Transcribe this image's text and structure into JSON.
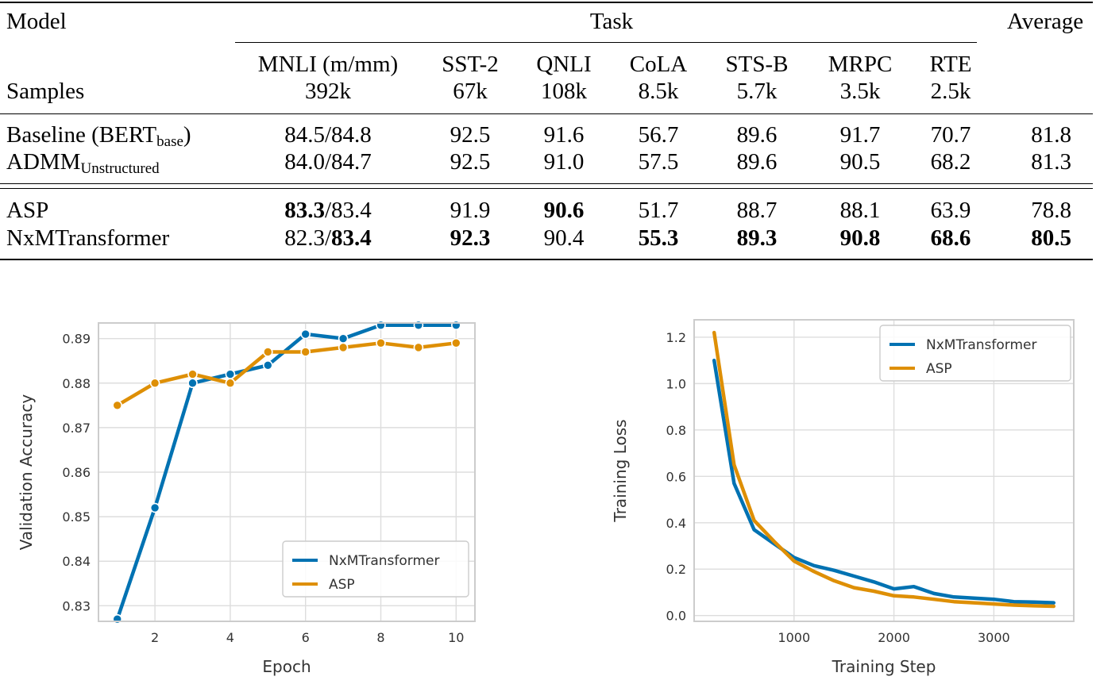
{
  "table": {
    "header": {
      "model": "Model",
      "task": "Task",
      "average": "Average",
      "samples": "Samples"
    },
    "tasks": [
      {
        "name": "MNLI (m/mm)",
        "samples": "392k"
      },
      {
        "name": "SST-2",
        "samples": "67k"
      },
      {
        "name": "QNLI",
        "samples": "108k"
      },
      {
        "name": "CoLA",
        "samples": "8.5k"
      },
      {
        "name": "STS-B",
        "samples": "5.7k"
      },
      {
        "name": "MRPC",
        "samples": "3.5k"
      },
      {
        "name": "RTE",
        "samples": "2.5k"
      }
    ],
    "rows": [
      {
        "model": "Baseline (BERT",
        "sub": "base",
        "suffix": ")",
        "mnli_a": "84.5",
        "mnli_b": "84.8",
        "values": [
          "92.5",
          "91.6",
          "56.7",
          "89.6",
          "91.7",
          "70.7"
        ],
        "average": "81.8"
      },
      {
        "model": "ADMM",
        "sub": "Unstructured",
        "suffix": "",
        "mnli_a": "84.0",
        "mnli_b": "84.7",
        "values": [
          "92.5",
          "91.0",
          "57.5",
          "89.6",
          "90.5",
          "68.2"
        ],
        "average": "81.3"
      },
      {
        "model": "ASP",
        "sub": "",
        "suffix": "",
        "mnli_a": "83.3",
        "mnli_b": "83.4",
        "values": [
          "91.9",
          "90.6",
          "51.7",
          "88.7",
          "88.1",
          "63.9"
        ],
        "average": "78.8"
      },
      {
        "model": "NxMTransformer",
        "sub": "",
        "suffix": "",
        "mnli_a": "82.3",
        "mnli_b": "83.4",
        "values": [
          "92.3",
          "90.4",
          "55.3",
          "89.3",
          "90.8",
          "68.6"
        ],
        "average": "80.5"
      }
    ],
    "slash": "/"
  },
  "chart_data": [
    {
      "type": "line",
      "xlabel": "Epoch",
      "ylabel": "Validation Accuracy",
      "xlim": [
        0.5,
        10.5
      ],
      "ylim": [
        0.8265,
        0.8935
      ],
      "xticks": [
        2,
        4,
        6,
        8,
        10
      ],
      "xtick_labels": [
        "2",
        "4",
        "6",
        "8",
        "10"
      ],
      "yticks": [
        0.83,
        0.84,
        0.85,
        0.86,
        0.87,
        0.88,
        0.89
      ],
      "ytick_labels": [
        "0.83",
        "0.84",
        "0.85",
        "0.86",
        "0.87",
        "0.88",
        "0.89"
      ],
      "legend": "lower-right",
      "x": [
        1,
        2,
        3,
        4,
        5,
        6,
        7,
        8,
        9,
        10
      ],
      "series": [
        {
          "name": "NxMTransformer",
          "color": "#0072b2",
          "values": [
            0.827,
            0.852,
            0.88,
            0.882,
            0.884,
            0.891,
            0.89,
            0.893,
            0.893,
            0.893
          ]
        },
        {
          "name": "ASP",
          "color": "#de8f05",
          "values": [
            0.875,
            0.88,
            0.882,
            0.88,
            0.887,
            0.887,
            0.888,
            0.889,
            0.888,
            0.889
          ]
        }
      ]
    },
    {
      "type": "line",
      "xlabel": "Training Step",
      "ylabel": "Training Loss",
      "xlim": [
        0,
        3800
      ],
      "ylim": [
        -0.025,
        1.275
      ],
      "xticks": [
        1000,
        2000,
        3000
      ],
      "xtick_labels": [
        "1000",
        "2000",
        "3000"
      ],
      "yticks": [
        0.0,
        0.2,
        0.4,
        0.6,
        0.8,
        1.0,
        1.2
      ],
      "ytick_labels": [
        "0.0",
        "0.2",
        "0.4",
        "0.6",
        "0.8",
        "1.0",
        "1.2"
      ],
      "legend": "top-right",
      "series": [
        {
          "name": "NxMTransformer",
          "color": "#0072b2",
          "x": [
            200,
            400,
            600,
            800,
            1000,
            1200,
            1400,
            1600,
            1800,
            2000,
            2200,
            2400,
            2600,
            2800,
            3000,
            3200,
            3400,
            3600
          ],
          "values": [
            1.1,
            0.57,
            0.37,
            0.31,
            0.25,
            0.215,
            0.195,
            0.17,
            0.145,
            0.115,
            0.125,
            0.095,
            0.08,
            0.075,
            0.07,
            0.06,
            0.058,
            0.055
          ]
        },
        {
          "name": "ASP",
          "color": "#de8f05",
          "x": [
            200,
            400,
            600,
            800,
            1000,
            1200,
            1400,
            1600,
            1800,
            2000,
            2200,
            2400,
            2600,
            2800,
            3000,
            3200,
            3400,
            3600
          ],
          "values": [
            1.22,
            0.65,
            0.41,
            0.32,
            0.235,
            0.19,
            0.15,
            0.12,
            0.105,
            0.085,
            0.08,
            0.07,
            0.06,
            0.055,
            0.05,
            0.045,
            0.042,
            0.04
          ]
        }
      ]
    }
  ]
}
